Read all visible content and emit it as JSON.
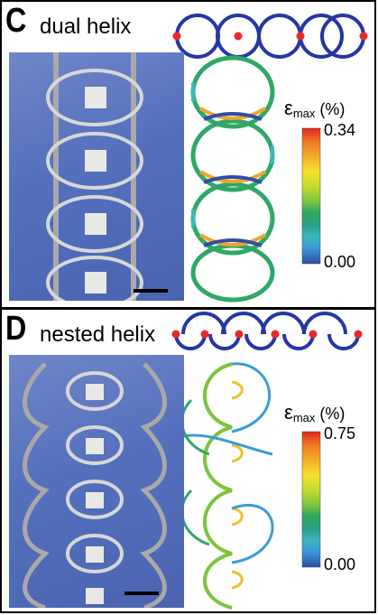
{
  "panels": [
    {
      "letter": "C",
      "title": "dual helix",
      "colorbar": {
        "symbol": "ε",
        "subscript": "max",
        "unit": "(%)",
        "max": "0.34",
        "min": "0.00"
      }
    },
    {
      "letter": "D",
      "title": "nested helix",
      "colorbar": {
        "symbol": "ε",
        "subscript": "max",
        "unit": "(%)",
        "max": "0.75",
        "min": "0.00"
      }
    }
  ],
  "colors": {
    "background_photo": "#5470bd",
    "ribbon_metal": "#b8b8b8",
    "pad": "#e8e8e6",
    "diagram_ring": "#2536a6",
    "bond_node": "#e8282d",
    "colorbar": [
      "#e3261f",
      "#f07a24",
      "#f4b22b",
      "#f6e12e",
      "#c9dc2e",
      "#8ccb3b",
      "#4cb849",
      "#30a85a",
      "#29a08a",
      "#3cb7c2",
      "#3b9bd7",
      "#3a6fc0",
      "#2f4ea6"
    ]
  }
}
